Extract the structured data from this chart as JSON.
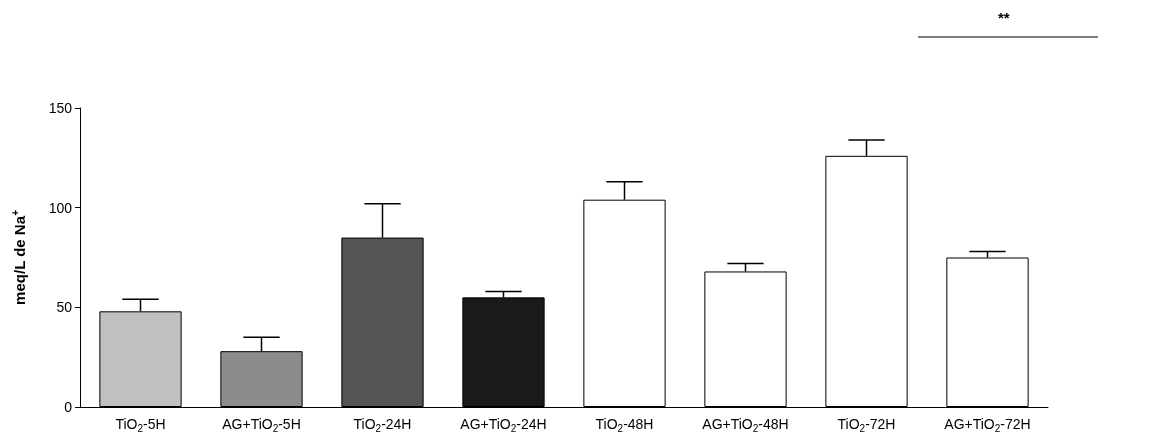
{
  "chart_data": {
    "type": "bar",
    "ylabel": "meq/L de Na$^{+}$",
    "categories": [
      "TiO$_{2}$-5H",
      "AG+TiO$_{2}$-5H",
      "TiO$_{2}$-24H",
      "AG+TiO$_{2}$-24H",
      "TiO$_{2}$-48H",
      "AG+TiO$_{2}$-48H",
      "TiO$_{2}$-72H",
      "AG+TiO$_{2}$-72H"
    ],
    "values": [
      48,
      28,
      85,
      55,
      104,
      68,
      126,
      75
    ],
    "errors": [
      [
        48,
        54
      ],
      [
        28,
        35
      ],
      [
        85,
        102
      ],
      [
        55,
        58
      ],
      [
        104,
        113
      ],
      [
        68,
        72
      ],
      [
        126,
        134
      ],
      [
        75,
        78
      ]
    ],
    "colors": [
      "#c0c0c0",
      "#8c8c8c",
      "#555555",
      "#1a1a1a",
      "#ffffff",
      "#ffffff",
      "#ffffff",
      "#ffffff"
    ],
    "ylim": [
      0,
      150
    ],
    "yticks": [
      0,
      50,
      100,
      150
    ],
    "grid": false,
    "annotations": [
      "**"
    ]
  }
}
